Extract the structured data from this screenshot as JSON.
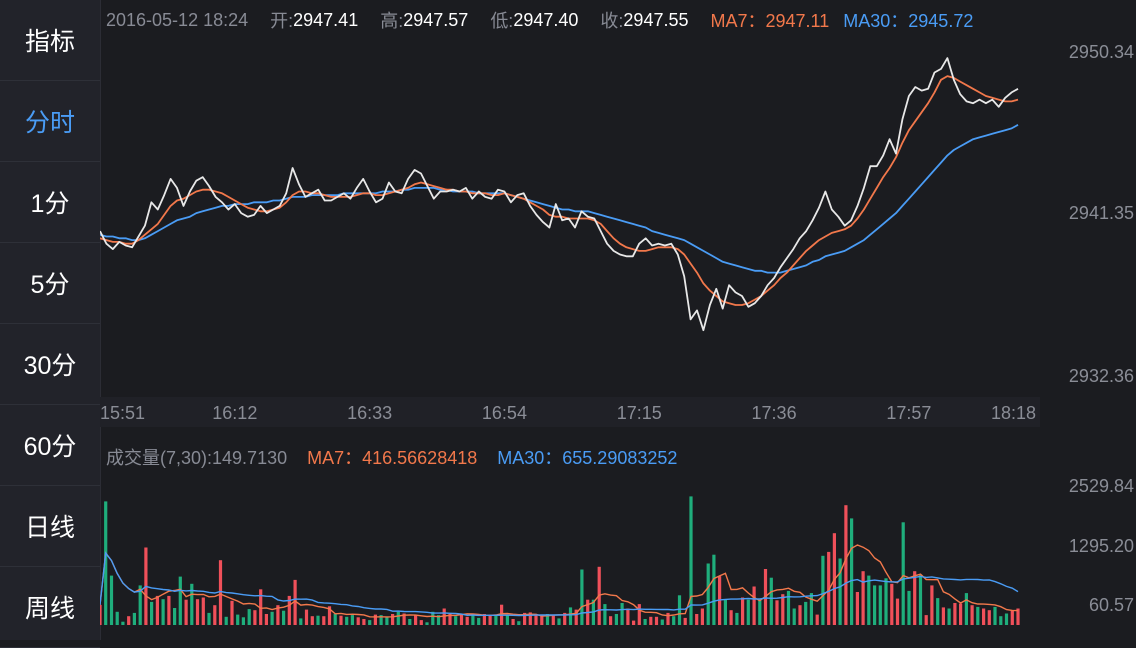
{
  "sidebar": {
    "items": [
      {
        "label": "指标",
        "active": false
      },
      {
        "label": "分时",
        "active": true
      },
      {
        "label": "1分",
        "active": false
      },
      {
        "label": "5分",
        "active": false
      },
      {
        "label": "30分",
        "active": false
      },
      {
        "label": "60分",
        "active": false
      },
      {
        "label": "日线",
        "active": false
      },
      {
        "label": "周线",
        "active": false
      }
    ]
  },
  "info": {
    "datetime": "2016-05-12 18:24",
    "open_label": "开:",
    "open": "2947.41",
    "high_label": "高:",
    "high": "2947.57",
    "low_label": "低:",
    "low": "2947.40",
    "close_label": "收:",
    "close": "2947.55",
    "ma7_text": "MA7：2947.11",
    "ma30_text": "MA30：2945.72"
  },
  "volume_info": {
    "label": "成交量(7,30):149.7130",
    "ma7_text": "MA7：416.56628418",
    "ma30_text": "MA30：655.29083252"
  },
  "colors": {
    "price": "#e8e8e8",
    "ma7": "#f2784b",
    "ma30": "#4a9cf5",
    "up": "#f0505a",
    "down": "#1fae7c",
    "accent": "#4a9cf5"
  },
  "chart_data": [
    {
      "type": "line",
      "title": "",
      "ylim": [
        2932.36,
        2950.34
      ],
      "y_ticks": [
        "2950.34",
        "2941.35",
        "2932.36"
      ],
      "x_ticks": [
        "15:51",
        "16:12",
        "16:33",
        "16:54",
        "17:15",
        "17:36",
        "17:57",
        "18:18"
      ],
      "x_tick_index": [
        0,
        21,
        42,
        63,
        84,
        105,
        126,
        147
      ],
      "grid": false,
      "series": [
        {
          "name": "price",
          "values": [
            2940.4,
            2939.7,
            2939.4,
            2939.8,
            2939.6,
            2939.5,
            2940.1,
            2940.7,
            2942.0,
            2941.6,
            2942.4,
            2943.3,
            2942.8,
            2941.8,
            2942.6,
            2943.2,
            2943.4,
            2942.9,
            2942.3,
            2942.0,
            2941.6,
            2941.9,
            2941.4,
            2941.2,
            2941.3,
            2941.8,
            2941.4,
            2941.6,
            2941.8,
            2942.5,
            2943.9,
            2943.0,
            2942.3,
            2942.5,
            2942.7,
            2942.1,
            2942.1,
            2942.3,
            2942.5,
            2942.2,
            2942.8,
            2943.3,
            2942.6,
            2942.0,
            2942.2,
            2943.1,
            2942.6,
            2942.5,
            2943.3,
            2943.8,
            2943.6,
            2942.9,
            2942.2,
            2942.6,
            2942.6,
            2942.7,
            2942.6,
            2942.8,
            2942.2,
            2942.6,
            2942.3,
            2942.2,
            2942.7,
            2942.6,
            2942.0,
            2942.4,
            2942.5,
            2941.8,
            2941.3,
            2940.9,
            2940.6,
            2941.9,
            2941.0,
            2941.1,
            2940.6,
            2941.5,
            2941.2,
            2941.1,
            2940.4,
            2939.7,
            2939.3,
            2939.1,
            2939.0,
            2939.0,
            2939.7,
            2940.0,
            2939.6,
            2939.7,
            2939.6,
            2939.7,
            2939.1,
            2937.9,
            2935.5,
            2936.0,
            2934.9,
            2936.3,
            2937.2,
            2936.1,
            2937.4,
            2937.0,
            2936.8,
            2936.2,
            2936.4,
            2936.8,
            2937.4,
            2937.8,
            2938.4,
            2938.9,
            2939.4,
            2940.0,
            2940.4,
            2941.0,
            2941.7,
            2942.6,
            2941.6,
            2941.2,
            2940.7,
            2941.0,
            2941.8,
            2942.8,
            2944.0,
            2944.0,
            2944.6,
            2945.5,
            2944.7,
            2946.6,
            2947.9,
            2948.4,
            2948.2,
            2948.3,
            2949.2,
            2949.4,
            2950.0,
            2948.8,
            2948.0,
            2947.6,
            2947.5,
            2947.7,
            2947.5,
            2947.7,
            2947.3,
            2947.8,
            2948.1,
            2948.3
          ]
        },
        {
          "name": "MA7",
          "values": [
            2940.0,
            2939.9,
            2939.8,
            2939.8,
            2939.7,
            2939.7,
            2939.9,
            2940.2,
            2940.5,
            2940.8,
            2941.3,
            2941.8,
            2942.1,
            2942.2,
            2942.4,
            2942.6,
            2942.7,
            2942.7,
            2942.6,
            2942.5,
            2942.3,
            2942.1,
            2941.9,
            2941.7,
            2941.6,
            2941.5,
            2941.5,
            2941.6,
            2941.7,
            2942.0,
            2942.4,
            2942.6,
            2942.6,
            2942.5,
            2942.5,
            2942.4,
            2942.3,
            2942.3,
            2942.3,
            2942.3,
            2942.4,
            2942.5,
            2942.5,
            2942.4,
            2942.4,
            2942.5,
            2942.6,
            2942.7,
            2942.8,
            2943.0,
            2943.1,
            2943.0,
            2942.9,
            2942.8,
            2942.7,
            2942.7,
            2942.6,
            2942.6,
            2942.5,
            2942.5,
            2942.5,
            2942.4,
            2942.4,
            2942.5,
            2942.4,
            2942.3,
            2942.2,
            2942.0,
            2941.8,
            2941.6,
            2941.3,
            2941.2,
            2941.2,
            2941.1,
            2941.1,
            2941.1,
            2941.1,
            2941.0,
            2940.8,
            2940.4,
            2940.0,
            2939.7,
            2939.5,
            2939.4,
            2939.3,
            2939.3,
            2939.4,
            2939.5,
            2939.5,
            2939.5,
            2939.4,
            2939.1,
            2938.6,
            2938.1,
            2937.5,
            2937.1,
            2936.8,
            2936.5,
            2936.4,
            2936.3,
            2936.3,
            2936.4,
            2936.6,
            2936.8,
            2937.1,
            2937.4,
            2937.8,
            2938.1,
            2938.5,
            2938.9,
            2939.3,
            2939.6,
            2939.9,
            2940.1,
            2940.3,
            2940.4,
            2940.5,
            2940.7,
            2941.1,
            2941.6,
            2942.2,
            2942.8,
            2943.4,
            2943.9,
            2944.5,
            2945.3,
            2946.0,
            2946.5,
            2947.0,
            2947.5,
            2948.1,
            2948.8,
            2949.0,
            2948.9,
            2948.7,
            2948.5,
            2948.3,
            2948.1,
            2947.9,
            2947.8,
            2947.7,
            2947.6,
            2947.6,
            2947.7
          ]
        },
        {
          "name": "MA30",
          "values": [
            2940.2,
            2940.1,
            2940.1,
            2940.0,
            2940.0,
            2939.9,
            2939.9,
            2940.0,
            2940.2,
            2940.4,
            2940.6,
            2940.8,
            2941.0,
            2941.1,
            2941.2,
            2941.4,
            2941.5,
            2941.6,
            2941.7,
            2941.8,
            2941.8,
            2941.9,
            2941.9,
            2941.9,
            2942.0,
            2942.0,
            2942.0,
            2942.1,
            2942.1,
            2942.2,
            2942.3,
            2942.3,
            2942.3,
            2942.4,
            2942.4,
            2942.4,
            2942.4,
            2942.4,
            2942.5,
            2942.5,
            2942.5,
            2942.5,
            2942.5,
            2942.5,
            2942.6,
            2942.6,
            2942.6,
            2942.7,
            2942.7,
            2942.8,
            2942.8,
            2942.8,
            2942.8,
            2942.7,
            2942.7,
            2942.6,
            2942.6,
            2942.6,
            2942.6,
            2942.5,
            2942.5,
            2942.5,
            2942.5,
            2942.5,
            2942.4,
            2942.3,
            2942.2,
            2942.1,
            2942.0,
            2941.9,
            2941.8,
            2941.7,
            2941.6,
            2941.6,
            2941.5,
            2941.5,
            2941.5,
            2941.4,
            2941.3,
            2941.2,
            2941.1,
            2941.0,
            2940.9,
            2940.8,
            2940.7,
            2940.6,
            2940.4,
            2940.3,
            2940.2,
            2940.1,
            2940.0,
            2939.9,
            2939.7,
            2939.5,
            2939.3,
            2939.1,
            2938.9,
            2938.7,
            2938.6,
            2938.5,
            2938.4,
            2938.3,
            2938.2,
            2938.2,
            2938.1,
            2938.1,
            2938.1,
            2938.2,
            2938.3,
            2938.4,
            2938.5,
            2938.7,
            2938.8,
            2939.0,
            2939.1,
            2939.2,
            2939.3,
            2939.5,
            2939.7,
            2939.9,
            2940.2,
            2940.5,
            2940.8,
            2941.1,
            2941.4,
            2941.8,
            2942.2,
            2942.6,
            2943.0,
            2943.4,
            2943.8,
            2944.2,
            2944.6,
            2944.9,
            2945.1,
            2945.3,
            2945.5,
            2945.6,
            2945.7,
            2945.8,
            2945.9,
            2946.0,
            2946.1,
            2946.3
          ]
        }
      ]
    },
    {
      "type": "bar",
      "title": "",
      "ylim": [
        0,
        2529.84
      ],
      "y_ticks": [
        "2529.84",
        "1295.20",
        "60.57"
      ],
      "grid": false,
      "series": [
        {
          "name": "volume",
          "values": [
            366,
            2250,
            900,
            240,
            60,
            160,
            220,
            720,
            1410,
            420,
            530,
            470,
            530,
            310,
            880,
            460,
            750,
            470,
            500,
            220,
            360,
            1180,
            150,
            440,
            190,
            140,
            290,
            270,
            650,
            200,
            240,
            360,
            260,
            530,
            820,
            120,
            280,
            160,
            170,
            160,
            340,
            200,
            170,
            150,
            180,
            140,
            110,
            90,
            190,
            180,
            140,
            200,
            240,
            210,
            110,
            180,
            90,
            50,
            240,
            180,
            300,
            200,
            160,
            200,
            150,
            210,
            130,
            200,
            190,
            190,
            370,
            180,
            110,
            70,
            220,
            230,
            180,
            160,
            200,
            190,
            120,
            220,
            320,
            280,
            1010,
            460,
            460,
            1060,
            380,
            160,
            200,
            400,
            300,
            80,
            380,
            110,
            150,
            150,
            100,
            220,
            160,
            540,
            130,
            2340,
            200,
            300,
            1120,
            1280,
            890,
            460,
            270,
            220,
            500,
            460,
            700,
            480,
            1020,
            860,
            450,
            560,
            620,
            300,
            360,
            420,
            580,
            190,
            1260,
            1330,
            1670,
            1210,
            2180,
            1940,
            600,
            980,
            900,
            720,
            720,
            850,
            750,
            480,
            1870,
            620,
            980,
            920,
            180,
            720,
            490,
            320,
            300,
            400,
            390,
            580,
            360,
            330,
            300,
            270,
            330,
            160,
            210,
            260,
            300
          ]
        }
      ],
      "up_down": "rggggrggrgrgrggrgrrgrrgrgggrrrgrgrrgrrgrrgrggrrgrggrgrgrrgggrrgrrggrrgrgrgrrrrgrgrgrgrgrgrggrrrgrrgrggrgrrggrgrgrgrgrgrrggrggrgrrgrgrrggggrrggrgrrgrgrrgrgrrgggrrgg"
    }
  ]
}
